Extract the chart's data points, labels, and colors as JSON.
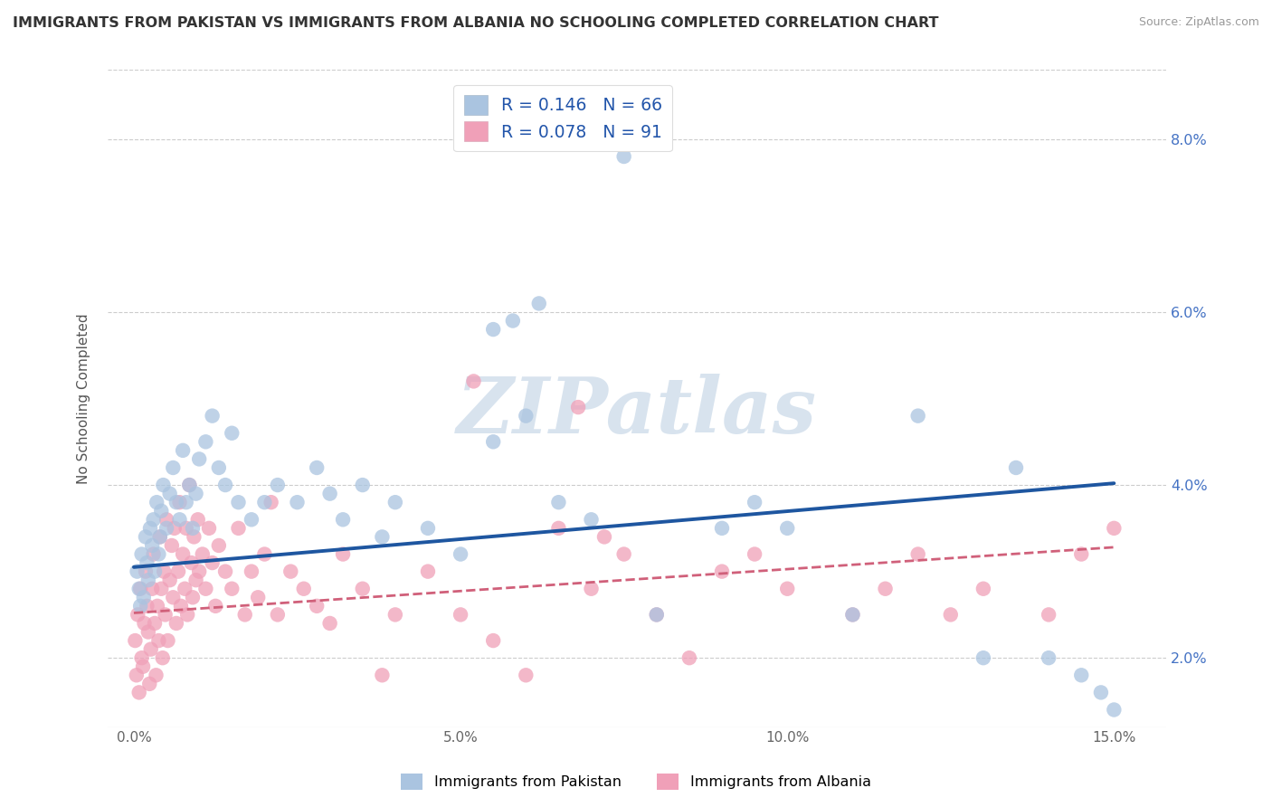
{
  "title": "IMMIGRANTS FROM PAKISTAN VS IMMIGRANTS FROM ALBANIA NO SCHOOLING COMPLETED CORRELATION CHART",
  "source": "Source: ZipAtlas.com",
  "xlabel_ticks": [
    "0.0%",
    "5.0%",
    "10.0%",
    "15.0%"
  ],
  "xlabel_tick_vals": [
    0.0,
    5.0,
    10.0,
    15.0
  ],
  "ylabel_ticks": [
    "2.0%",
    "4.0%",
    "6.0%",
    "8.0%"
  ],
  "ylabel_tick_vals": [
    2.0,
    4.0,
    6.0,
    8.0
  ],
  "xlim": [
    -0.4,
    15.8
  ],
  "ylim": [
    1.2,
    8.8
  ],
  "watermark": "ZIPatlas",
  "pakistan_color": "#aac4e0",
  "pakistan_line_color": "#1e56a0",
  "albania_color": "#f0a0b8",
  "albania_line_color": "#d0607a",
  "pakistan_R": 0.146,
  "pakistan_N": 66,
  "albania_R": 0.078,
  "albania_N": 91,
  "bottom_legend_pakistan": "Immigrants from Pakistan",
  "bottom_legend_albania": "Immigrants from Albania",
  "pakistan_x": [
    0.05,
    0.08,
    0.1,
    0.12,
    0.15,
    0.18,
    0.2,
    0.22,
    0.25,
    0.28,
    0.3,
    0.32,
    0.35,
    0.38,
    0.4,
    0.42,
    0.45,
    0.5,
    0.55,
    0.6,
    0.65,
    0.7,
    0.75,
    0.8,
    0.85,
    0.9,
    0.95,
    1.0,
    1.1,
    1.2,
    1.3,
    1.4,
    1.5,
    1.6,
    1.8,
    2.0,
    2.2,
    2.5,
    2.8,
    3.0,
    3.2,
    3.5,
    3.8,
    4.0,
    4.5,
    5.0,
    5.5,
    6.0,
    6.5,
    7.0,
    8.0,
    9.0,
    9.5,
    10.0,
    11.0,
    12.0,
    13.0,
    14.0,
    14.5,
    5.5,
    5.8,
    6.2,
    7.5,
    13.5,
    14.8,
    15.0
  ],
  "pakistan_y": [
    3.0,
    2.8,
    2.6,
    3.2,
    2.7,
    3.4,
    3.1,
    2.9,
    3.5,
    3.3,
    3.6,
    3.0,
    3.8,
    3.2,
    3.4,
    3.7,
    4.0,
    3.5,
    3.9,
    4.2,
    3.8,
    3.6,
    4.4,
    3.8,
    4.0,
    3.5,
    3.9,
    4.3,
    4.5,
    4.8,
    4.2,
    4.0,
    4.6,
    3.8,
    3.6,
    3.8,
    4.0,
    3.8,
    4.2,
    3.9,
    3.6,
    4.0,
    3.4,
    3.8,
    3.5,
    3.2,
    4.5,
    4.8,
    3.8,
    3.6,
    2.5,
    3.5,
    3.8,
    3.5,
    2.5,
    4.8,
    2.0,
    2.0,
    1.8,
    5.8,
    5.9,
    6.1,
    7.8,
    4.2,
    1.6,
    1.4
  ],
  "albania_x": [
    0.02,
    0.04,
    0.06,
    0.08,
    0.1,
    0.12,
    0.14,
    0.16,
    0.18,
    0.2,
    0.22,
    0.24,
    0.26,
    0.28,
    0.3,
    0.32,
    0.34,
    0.36,
    0.38,
    0.4,
    0.42,
    0.44,
    0.46,
    0.48,
    0.5,
    0.52,
    0.55,
    0.58,
    0.6,
    0.62,
    0.65,
    0.68,
    0.7,
    0.72,
    0.75,
    0.78,
    0.8,
    0.82,
    0.85,
    0.88,
    0.9,
    0.92,
    0.95,
    0.98,
    1.0,
    1.05,
    1.1,
    1.15,
    1.2,
    1.25,
    1.3,
    1.4,
    1.5,
    1.6,
    1.7,
    1.8,
    1.9,
    2.0,
    2.1,
    2.2,
    2.4,
    2.6,
    2.8,
    3.0,
    3.2,
    3.5,
    3.8,
    4.0,
    4.5,
    5.0,
    5.5,
    6.0,
    6.5,
    7.0,
    7.5,
    8.0,
    9.0,
    10.0,
    11.0,
    12.0,
    13.0,
    14.0,
    15.0,
    5.2,
    6.8,
    7.2,
    8.5,
    9.5,
    11.5,
    12.5,
    14.5
  ],
  "albania_y": [
    2.2,
    1.8,
    2.5,
    1.6,
    2.8,
    2.0,
    1.9,
    2.4,
    3.0,
    2.6,
    2.3,
    1.7,
    2.1,
    2.8,
    3.2,
    2.4,
    1.8,
    2.6,
    2.2,
    3.4,
    2.8,
    2.0,
    3.0,
    2.5,
    3.6,
    2.2,
    2.9,
    3.3,
    2.7,
    3.5,
    2.4,
    3.0,
    3.8,
    2.6,
    3.2,
    2.8,
    3.5,
    2.5,
    4.0,
    3.1,
    2.7,
    3.4,
    2.9,
    3.6,
    3.0,
    3.2,
    2.8,
    3.5,
    3.1,
    2.6,
    3.3,
    3.0,
    2.8,
    3.5,
    2.5,
    3.0,
    2.7,
    3.2,
    3.8,
    2.5,
    3.0,
    2.8,
    2.6,
    2.4,
    3.2,
    2.8,
    1.8,
    2.5,
    3.0,
    2.5,
    2.2,
    1.8,
    3.5,
    2.8,
    3.2,
    2.5,
    3.0,
    2.8,
    2.5,
    3.2,
    2.8,
    2.5,
    3.5,
    5.2,
    4.9,
    3.4,
    2.0,
    3.2,
    2.8,
    2.5,
    3.2
  ]
}
